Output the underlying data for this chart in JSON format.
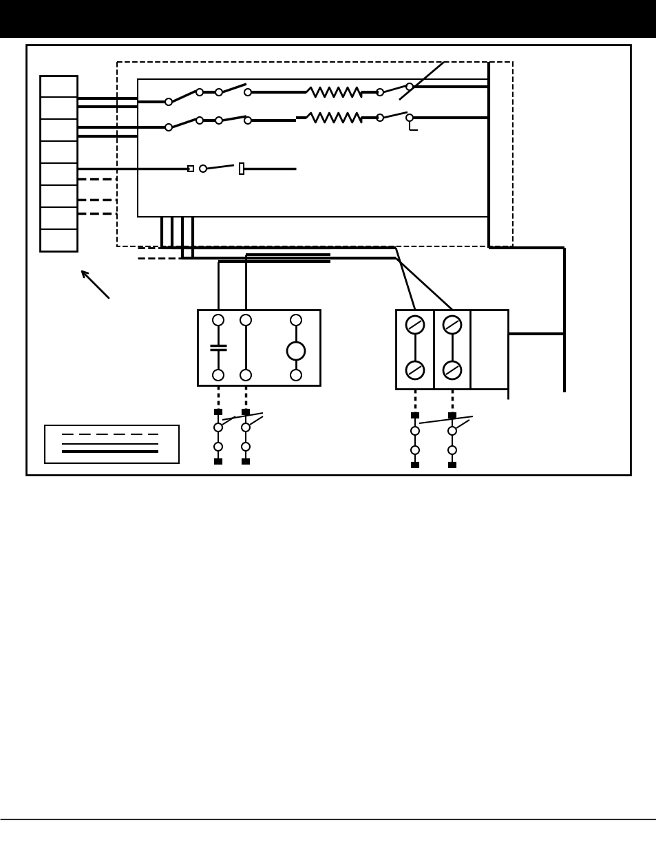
{
  "bg": "#ffffff",
  "k": "#000000",
  "w": "#ffffff",
  "fig_w": 9.54,
  "fig_h": 12.35,
  "dpi": 100
}
